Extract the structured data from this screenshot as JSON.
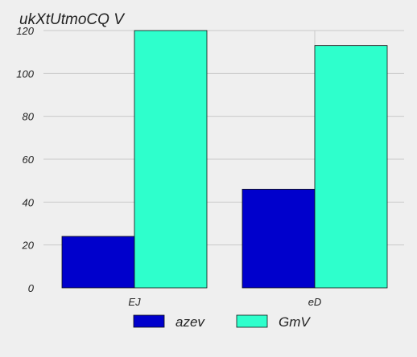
{
  "chart_data": {
    "type": "bar",
    "title": "ukXtUtmoCQ V",
    "categories": [
      "EJ",
      "eD"
    ],
    "series": [
      {
        "name": "azev",
        "values": [
          24,
          46
        ],
        "color": "#0000cc"
      },
      {
        "name": "GmV",
        "values": [
          120,
          113
        ],
        "color": "#2effcc"
      }
    ],
    "ylim": [
      0,
      120
    ],
    "yticks": [
      0,
      20,
      40,
      60,
      80,
      100,
      120
    ],
    "grid": true,
    "legend": "bottom"
  }
}
